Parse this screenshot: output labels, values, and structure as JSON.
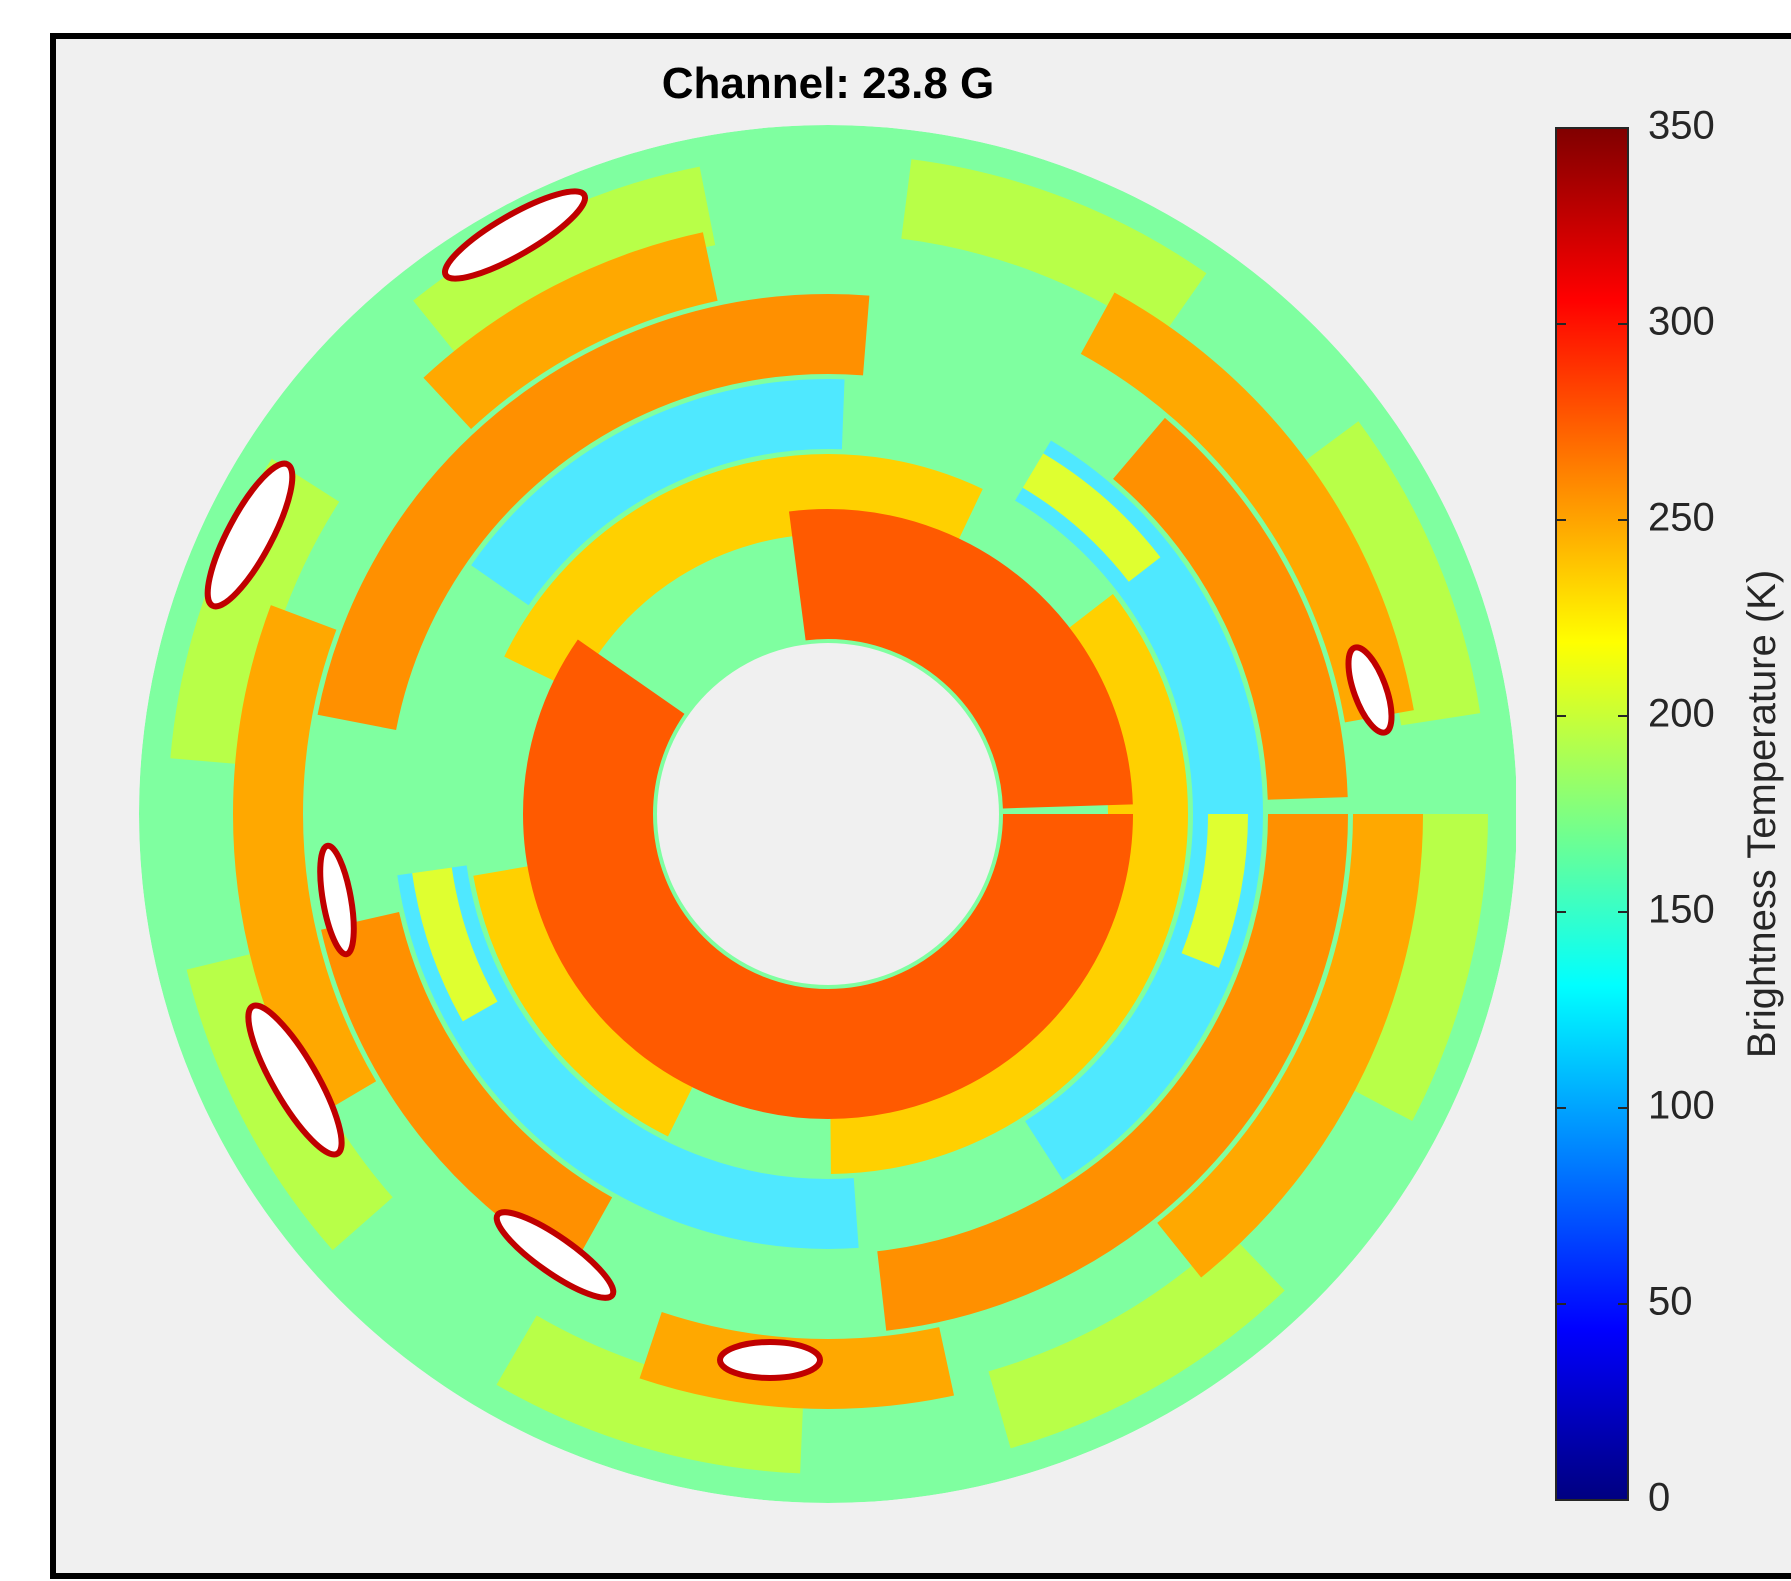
{
  "chart_data": {
    "type": "heatmap",
    "title": "Channel: 23.8 G",
    "colorbar": {
      "label": "Brightness Temperature (K)",
      "lim": [
        0,
        350
      ],
      "ticks": [
        0,
        50,
        100,
        150,
        200,
        250,
        300,
        350
      ],
      "colormap": "jet"
    }
  }
}
